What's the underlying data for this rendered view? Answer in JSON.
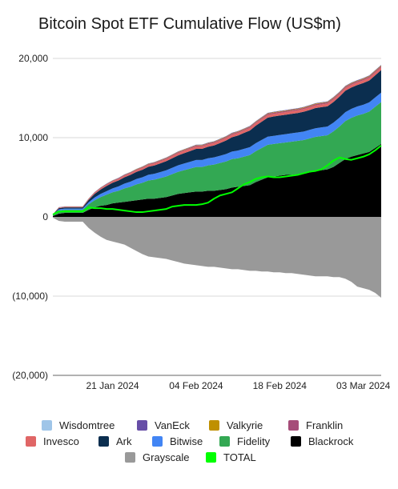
{
  "chart_data": {
    "type": "area",
    "title": "Bitcoin Spot ETF Cumulative Flow (US$m)",
    "xlabel": "",
    "ylabel": "",
    "ylim": [
      -20000,
      20000
    ],
    "yticks": [
      20000,
      10000,
      0,
      -10000,
      -20000
    ],
    "ytick_labels": [
      "20,000",
      "10,000",
      "0",
      "(10,000)",
      "(20,000)"
    ],
    "xtick_labels": [
      "21 Jan 2024",
      "04 Feb 2024",
      "18 Feb 2024",
      "03 Mar 2024"
    ],
    "xtick_positions": [
      10,
      24,
      38,
      52
    ],
    "grid": true,
    "legend_position": "bottom",
    "x": [
      "11 Jan 2024",
      "12 Jan 2024",
      "13 Jan 2024",
      "14 Jan 2024",
      "15 Jan 2024",
      "16 Jan 2024",
      "17 Jan 2024",
      "18 Jan 2024",
      "19 Jan 2024",
      "20 Jan 2024",
      "21 Jan 2024",
      "22 Jan 2024",
      "23 Jan 2024",
      "24 Jan 2024",
      "25 Jan 2024",
      "26 Jan 2024",
      "27 Jan 2024",
      "28 Jan 2024",
      "29 Jan 2024",
      "30 Jan 2024",
      "31 Jan 2024",
      "01 Feb 2024",
      "02 Feb 2024",
      "03 Feb 2024",
      "04 Feb 2024",
      "05 Feb 2024",
      "06 Feb 2024",
      "07 Feb 2024",
      "08 Feb 2024",
      "09 Feb 2024",
      "10 Feb 2024",
      "11 Feb 2024",
      "12 Feb 2024",
      "13 Feb 2024",
      "14 Feb 2024",
      "15 Feb 2024",
      "16 Feb 2024",
      "17 Feb 2024",
      "18 Feb 2024",
      "19 Feb 2024",
      "20 Feb 2024",
      "21 Feb 2024",
      "22 Feb 2024",
      "23 Feb 2024",
      "24 Feb 2024",
      "25 Feb 2024",
      "26 Feb 2024",
      "27 Feb 2024",
      "28 Feb 2024",
      "29 Feb 2024",
      "01 Mar 2024",
      "02 Mar 2024",
      "03 Mar 2024",
      "04 Mar 2024",
      "05 Mar 2024",
      "06 Mar 2024"
    ],
    "series": [
      {
        "name": "Grayscale",
        "color": "#999999",
        "values": [
          -100,
          -500,
          -600,
          -600,
          -600,
          -600,
          -1400,
          -2000,
          -2500,
          -2900,
          -3100,
          -3300,
          -3500,
          -3900,
          -4300,
          -4700,
          -5000,
          -5100,
          -5200,
          -5300,
          -5500,
          -5700,
          -5900,
          -6000,
          -6100,
          -6200,
          -6300,
          -6300,
          -6400,
          -6500,
          -6600,
          -6600,
          -6700,
          -6800,
          -6800,
          -6900,
          -6900,
          -7000,
          -7000,
          -7100,
          -7100,
          -7200,
          -7300,
          -7400,
          -7500,
          -7500,
          -7500,
          -7600,
          -7600,
          -7800,
          -8200,
          -8800,
          -9000,
          -9200,
          -9600,
          -10200
        ]
      },
      {
        "name": "Blackrock",
        "color": "#000000",
        "values": [
          100,
          400,
          500,
          500,
          500,
          500,
          900,
          1200,
          1400,
          1500,
          1700,
          1800,
          1900,
          2000,
          2100,
          2200,
          2300,
          2300,
          2400,
          2500,
          2700,
          2900,
          3000,
          3100,
          3200,
          3200,
          3300,
          3300,
          3400,
          3500,
          3700,
          3800,
          3900,
          4000,
          4400,
          4700,
          5000,
          5100,
          5200,
          5300,
          5300,
          5400,
          5500,
          5600,
          5800,
          5900,
          6000,
          6300,
          6800,
          7300,
          7600,
          7800,
          8000,
          8200,
          8700,
          9200
        ]
      },
      {
        "name": "Fidelity",
        "color": "#33a853",
        "values": [
          100,
          400,
          400,
          400,
          400,
          400,
          700,
          900,
          1100,
          1300,
          1400,
          1500,
          1700,
          1800,
          2000,
          2100,
          2300,
          2400,
          2500,
          2600,
          2700,
          2800,
          2900,
          3000,
          3100,
          3100,
          3200,
          3300,
          3400,
          3500,
          3600,
          3600,
          3700,
          3800,
          3900,
          4000,
          4100,
          4100,
          4100,
          4100,
          4200,
          4200,
          4200,
          4300,
          4300,
          4300,
          4300,
          4500,
          4600,
          4800,
          4900,
          5000,
          5000,
          5100,
          5200,
          5300
        ]
      },
      {
        "name": "Bitwise",
        "color": "#4285f4",
        "values": [
          50,
          150,
          150,
          150,
          150,
          150,
          250,
          350,
          400,
          450,
          500,
          550,
          600,
          650,
          680,
          700,
          720,
          740,
          760,
          780,
          800,
          820,
          840,
          860,
          880,
          890,
          900,
          910,
          920,
          930,
          950,
          970,
          990,
          1000,
          1010,
          1020,
          1030,
          1030,
          1040,
          1040,
          1050,
          1060,
          1070,
          1080,
          1090,
          1100,
          1100,
          1100,
          1110,
          1120,
          1130,
          1140,
          1150,
          1160,
          1170,
          1180
        ]
      },
      {
        "name": "Ark",
        "color": "#0b2e4f",
        "values": [
          50,
          150,
          150,
          150,
          150,
          150,
          300,
          450,
          550,
          650,
          700,
          750,
          800,
          850,
          900,
          950,
          1000,
          1050,
          1100,
          1150,
          1200,
          1250,
          1300,
          1350,
          1400,
          1400,
          1450,
          1500,
          1600,
          1700,
          1800,
          1900,
          2000,
          2100,
          2200,
          2300,
          2400,
          2450,
          2450,
          2450,
          2450,
          2450,
          2500,
          2500,
          2550,
          2550,
          2550,
          2600,
          2650,
          2700,
          2700,
          2700,
          2750,
          2750,
          2800,
          2850
        ]
      },
      {
        "name": "Invesco",
        "color": "#e06666",
        "values": [
          20,
          60,
          70,
          70,
          70,
          70,
          100,
          130,
          150,
          170,
          180,
          190,
          200,
          210,
          220,
          230,
          240,
          250,
          260,
          270,
          280,
          290,
          300,
          300,
          310,
          310,
          310,
          310,
          310,
          320,
          320,
          320,
          320,
          330,
          330,
          330,
          330,
          330,
          330,
          330,
          340,
          340,
          340,
          340,
          340,
          340,
          340,
          340,
          340,
          340,
          340,
          340,
          340,
          340,
          350,
          350
        ]
      },
      {
        "name": "Franklin",
        "color": "#a64d79",
        "values": [
          10,
          30,
          30,
          30,
          30,
          30,
          50,
          60,
          70,
          70,
          80,
          80,
          90,
          90,
          90,
          100,
          100,
          100,
          100,
          100,
          110,
          110,
          110,
          110,
          120,
          120,
          120,
          120,
          120,
          130,
          130,
          130,
          130,
          130,
          130,
          140,
          140,
          140,
          140,
          140,
          140,
          140,
          140,
          150,
          150,
          150,
          150,
          150,
          150,
          150,
          150,
          150,
          150,
          160,
          160,
          160
        ]
      },
      {
        "name": "Valkyrie",
        "color": "#bf9000",
        "values": [
          5,
          15,
          15,
          15,
          15,
          15,
          20,
          25,
          30,
          30,
          35,
          35,
          40,
          40,
          40,
          45,
          45,
          45,
          50,
          50,
          50,
          50,
          55,
          55,
          55,
          55,
          55,
          55,
          60,
          60,
          60,
          60,
          60,
          60,
          60,
          65,
          65,
          65,
          65,
          65,
          65,
          65,
          70,
          70,
          70,
          70,
          70,
          70,
          70,
          70,
          70,
          70,
          70,
          75,
          75,
          75
        ]
      },
      {
        "name": "VanEck",
        "color": "#674ea7",
        "values": [
          5,
          15,
          15,
          15,
          15,
          15,
          20,
          25,
          25,
          30,
          30,
          30,
          35,
          35,
          35,
          40,
          40,
          40,
          40,
          45,
          45,
          45,
          45,
          45,
          50,
          50,
          50,
          50,
          50,
          50,
          55,
          55,
          55,
          55,
          55,
          55,
          60,
          60,
          60,
          60,
          60,
          60,
          60,
          60,
          60,
          60,
          60,
          60,
          65,
          65,
          65,
          65,
          65,
          65,
          65,
          65
        ]
      },
      {
        "name": "Wisdomtree",
        "color": "#9fc5e8",
        "values": [
          2,
          5,
          5,
          5,
          5,
          5,
          6,
          7,
          8,
          8,
          8,
          9,
          9,
          9,
          9,
          10,
          10,
          10,
          10,
          10,
          10,
          10,
          11,
          11,
          11,
          11,
          11,
          11,
          11,
          12,
          12,
          12,
          12,
          12,
          12,
          12,
          12,
          12,
          12,
          12,
          12,
          13,
          13,
          13,
          13,
          13,
          13,
          13,
          13,
          13,
          13,
          13,
          13,
          13,
          13,
          13
        ]
      },
      {
        "name": "TOTAL",
        "color": "#00ff00",
        "values": [
          300,
          700,
          700,
          700,
          700,
          700,
          1200,
          1100,
          1100,
          1000,
          1000,
          900,
          800,
          700,
          600,
          600,
          700,
          800,
          900,
          1000,
          1300,
          1400,
          1500,
          1500,
          1500,
          1600,
          1800,
          2300,
          2700,
          2900,
          3100,
          3600,
          4100,
          4400,
          4800,
          5000,
          5100,
          5000,
          5000,
          5100,
          5200,
          5300,
          5500,
          5700,
          5800,
          6000,
          6500,
          7100,
          7500,
          7300,
          7200,
          7400,
          7600,
          7900,
          8400,
          9000
        ]
      }
    ]
  },
  "legend": {
    "rows": [
      [
        "Wisdomtree",
        "VanEck",
        "Valkyrie",
        "Franklin"
      ],
      [
        "Invesco",
        "Ark",
        "Bitwise",
        "Fidelity",
        "Blackrock"
      ],
      [
        "Grayscale",
        "TOTAL"
      ]
    ]
  }
}
